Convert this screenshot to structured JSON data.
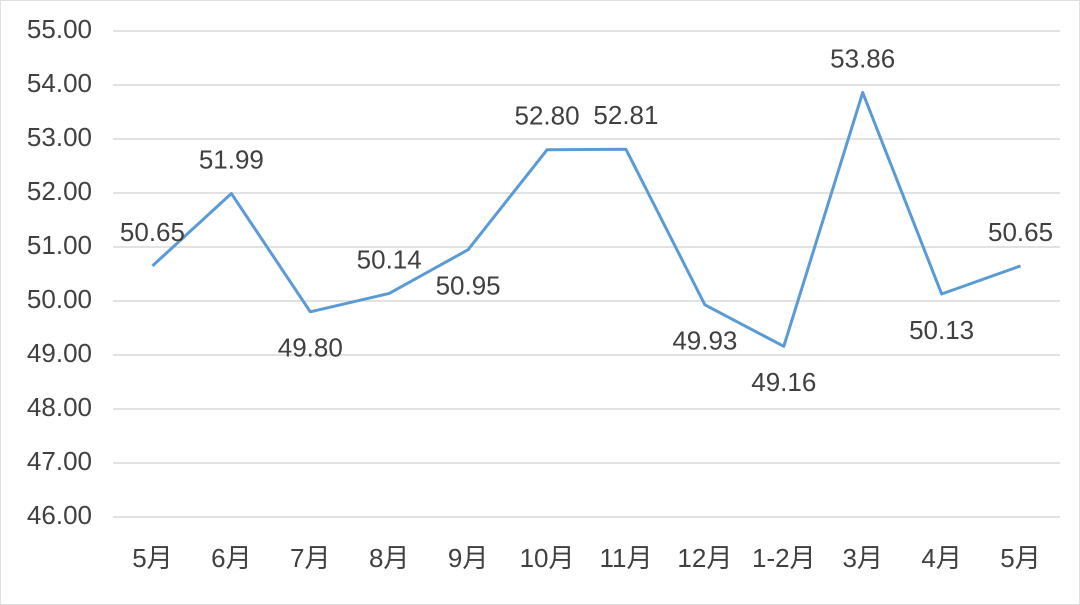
{
  "chart_data": {
    "type": "line",
    "categories": [
      "5月",
      "6月",
      "7月",
      "8月",
      "9月",
      "10月",
      "11月",
      "12月",
      "1-2月",
      "3月",
      "4月",
      "5月"
    ],
    "values": [
      50.65,
      51.99,
      49.8,
      50.14,
      50.95,
      52.8,
      52.81,
      49.93,
      49.16,
      53.86,
      50.13,
      50.65
    ],
    "value_labels": [
      "50.65",
      "51.99",
      "49.80",
      "50.14",
      "50.95",
      "52.80",
      "52.81",
      "49.93",
      "49.16",
      "53.86",
      "50.13",
      "50.65"
    ],
    "color": "#5b9bd5",
    "ylim": [
      46,
      55
    ],
    "yticks": [
      {
        "value": 46,
        "label": "46.00"
      },
      {
        "value": 47,
        "label": "47.00"
      },
      {
        "value": 48,
        "label": "48.00"
      },
      {
        "value": 49,
        "label": "49.00"
      },
      {
        "value": 50,
        "label": "50.00"
      },
      {
        "value": 51,
        "label": "51.00"
      },
      {
        "value": 52,
        "label": "52.00"
      },
      {
        "value": 53,
        "label": "53.00"
      },
      {
        "value": 54,
        "label": "54.00"
      },
      {
        "value": 55,
        "label": "55.00"
      }
    ],
    "grid": true
  }
}
